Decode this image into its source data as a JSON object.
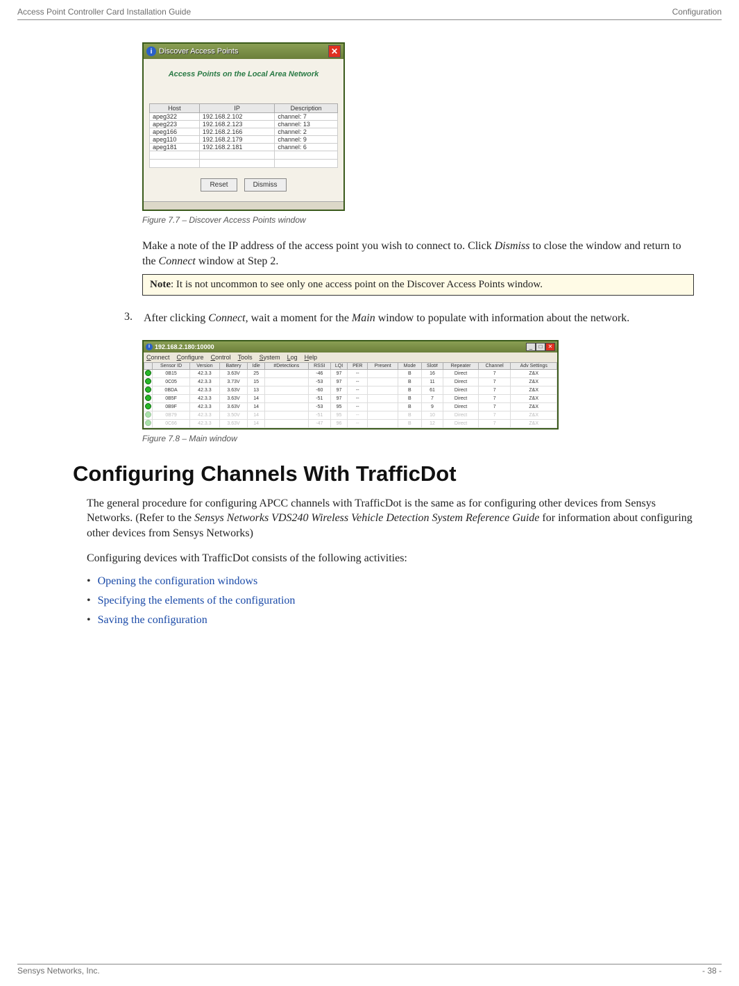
{
  "header": {
    "left": "Access Point Controller Card Installation Guide",
    "right": "Configuration"
  },
  "discover": {
    "title": "Discover Access Points",
    "subheader": "Access Points on the Local Area Network",
    "columns": [
      "Host",
      "IP",
      "Description"
    ],
    "rows": [
      [
        "apeg322",
        "192.168.2.102",
        "channel: 7"
      ],
      [
        "apeg223",
        "192.168.2.123",
        "channel: 13"
      ],
      [
        "apeg166",
        "192.168.2.166",
        "channel: 2"
      ],
      [
        "apeg110",
        "192.168.2.179",
        "channel: 9"
      ],
      [
        "apeg181",
        "192.168.2.181",
        "channel: 6"
      ]
    ],
    "buttons": {
      "reset": "Reset",
      "dismiss": "Dismiss"
    }
  },
  "caption1": "Figure 7.7 – Discover Access Points window",
  "body1a": "Make a note of the IP address of the access point you wish to connect to. Click ",
  "body1b": "Dismiss",
  "body1c": " to close the window and return to the ",
  "body1d": "Connect",
  "body1e": " window at Step 2.",
  "note": {
    "bold": "Note",
    "text": ": It is not uncommon to see only one access point on the Discover Access Points window."
  },
  "step3": {
    "num": "3.",
    "a": "After clicking ",
    "b": "Connect",
    "c": ", wait a moment for the ",
    "d": "Main",
    "e": " window to populate with information about the network."
  },
  "mainwin": {
    "title": "192.168.2.180:10000",
    "menu": [
      "Connect",
      "Configure",
      "Control",
      "Tools",
      "System",
      "Log",
      "Help"
    ],
    "columns": [
      "",
      "Sensor ID",
      "Version",
      "Battery",
      "Idle",
      "#Detections",
      "RSSI",
      "LQI",
      "PER",
      "Present",
      "Mode",
      "Slot#",
      "Repeater",
      "Channel",
      "Adv Settings"
    ],
    "rows": [
      [
        "0B15",
        "42.3.3",
        "3.63V",
        "25",
        "",
        "-46",
        "97",
        "--",
        "",
        "B",
        "16",
        "Direct",
        "7",
        "Z&X"
      ],
      [
        "0C05",
        "42.3.3",
        "3.73V",
        "15",
        "",
        "-53",
        "97",
        "--",
        "",
        "B",
        "11",
        "Direct",
        "7",
        "Z&X"
      ],
      [
        "0BDA",
        "42.3.3",
        "3.63V",
        "13",
        "",
        "-60",
        "97",
        "--",
        "",
        "B",
        "61",
        "Direct",
        "7",
        "Z&X"
      ],
      [
        "0B5F",
        "42.3.3",
        "3.63V",
        "14",
        "",
        "-51",
        "97",
        "--",
        "",
        "B",
        "7",
        "Direct",
        "7",
        "Z&X"
      ],
      [
        "0B9F",
        "42.3.3",
        "3.63V",
        "14",
        "",
        "-53",
        "95",
        "--",
        "",
        "B",
        "9",
        "Direct",
        "7",
        "Z&X"
      ],
      [
        "0B79",
        "42.3.3",
        "3.50V",
        "14",
        "",
        "-51",
        "95",
        "--",
        "",
        "B",
        "10",
        "Direct",
        "7",
        "Z&X"
      ],
      [
        "0C66",
        "42.3.3",
        "3.63V",
        "14",
        "",
        "-47",
        "96",
        "--",
        "",
        "B",
        "12",
        "Direct",
        "7",
        "Z&X"
      ]
    ]
  },
  "caption2": "Figure 7.8 – Main window",
  "h1": "Configuring Channels With TrafficDot",
  "para1a": "The general procedure for configuring APCC channels with TrafficDot is the same as for configuring other devices from Sensys Networks. (Refer to the ",
  "para1b": "Sensys Networks VDS240 Wireless Vehicle Detection System Reference Guide",
  "para1c": " for information about configuring other devices from Sensys Networks)",
  "para2": "Configuring devices with TrafficDot consists of the following activities:",
  "links": {
    "l1": "Opening the configuration windows",
    "l2": "Specifying the elements of the configuration",
    "l3": "Saving the configuration"
  },
  "footer": {
    "left": "Sensys Networks, Inc.",
    "right": "- 38 -"
  }
}
